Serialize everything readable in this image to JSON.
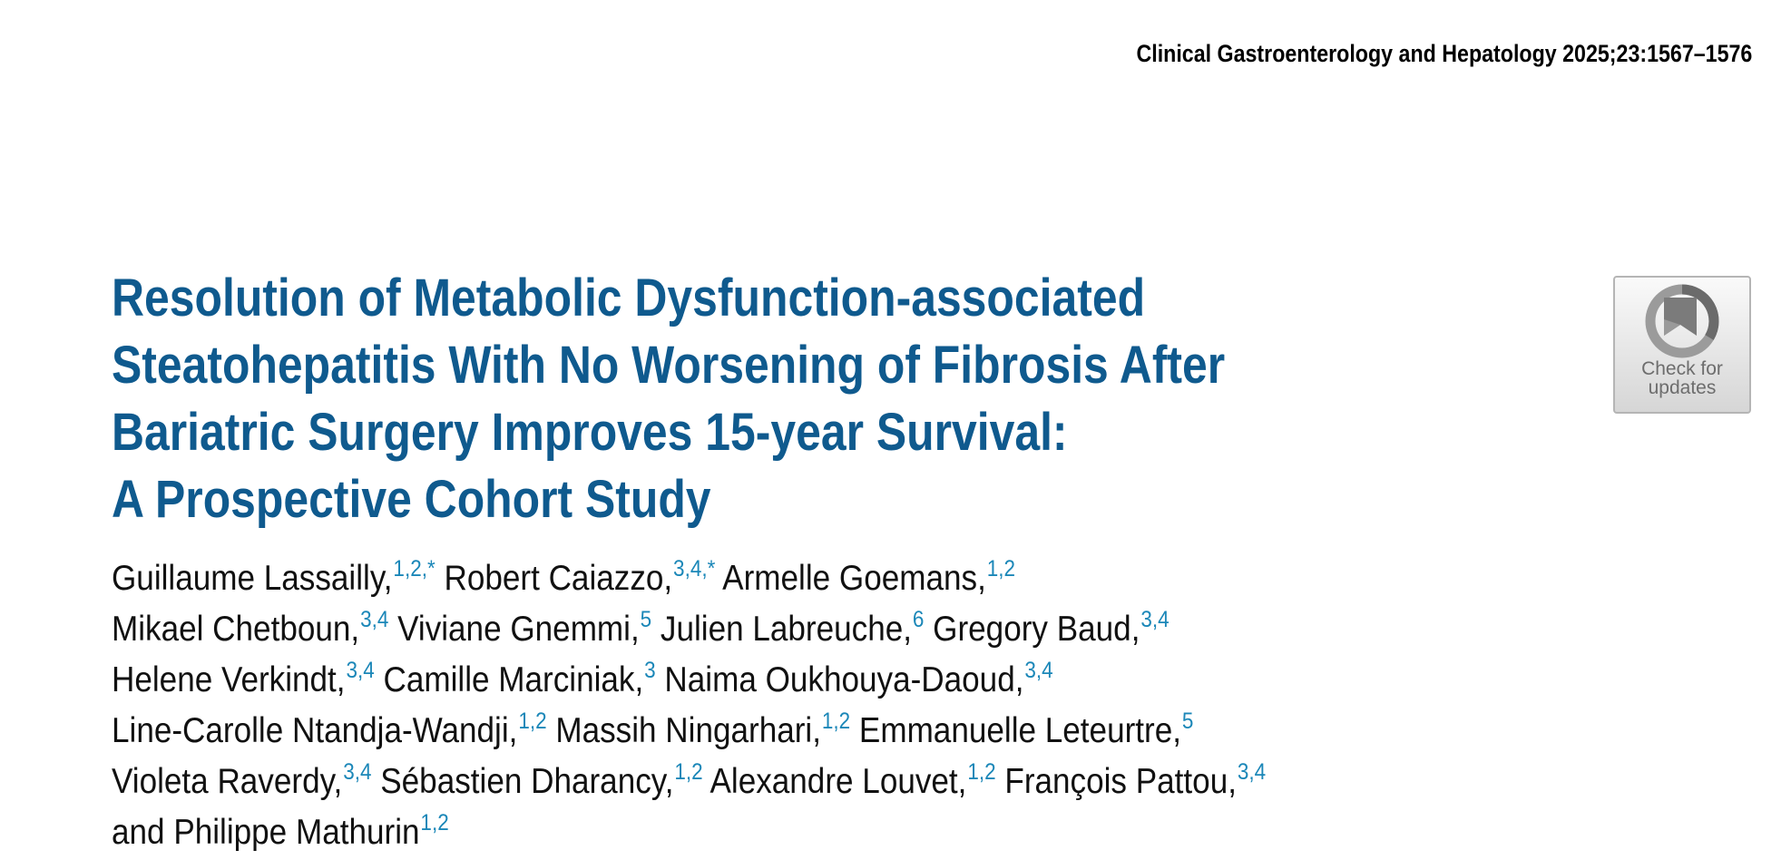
{
  "header": {
    "journal_citation": "Clinical Gastroenterology and Hepatology 2025;23:1567–1576"
  },
  "badge": {
    "line1": "Check for",
    "line2": "updates",
    "icon": "crossmark-bookmark-icon"
  },
  "title": {
    "lines": [
      "Resolution of Metabolic Dysfunction-associated",
      "Steatohepatitis With No Worsening of Fibrosis After",
      "Bariatric Surgery Improves 15-year Survival:",
      "A Prospective Cohort Study"
    ]
  },
  "authors": {
    "lines": [
      [
        {
          "name": "Guillaume Lassailly,",
          "sup": "1,2,*"
        },
        {
          "name": "Robert Caiazzo,",
          "sup": "3,4,*"
        },
        {
          "name": "Armelle Goemans,",
          "sup": "1,2"
        }
      ],
      [
        {
          "name": "Mikael Chetboun,",
          "sup": "3,4"
        },
        {
          "name": "Viviane Gnemmi,",
          "sup": "5"
        },
        {
          "name": "Julien Labreuche,",
          "sup": "6"
        },
        {
          "name": "Gregory Baud,",
          "sup": "3,4"
        }
      ],
      [
        {
          "name": "Helene Verkindt,",
          "sup": "3,4"
        },
        {
          "name": "Camille Marciniak,",
          "sup": "3"
        },
        {
          "name": "Naima Oukhouya-Daoud,",
          "sup": "3,4"
        }
      ],
      [
        {
          "name": "Line-Carolle Ntandja-Wandji,",
          "sup": "1,2"
        },
        {
          "name": "Massih Ningarhari,",
          "sup": "1,2"
        },
        {
          "name": "Emmanuelle Leteurtre,",
          "sup": "5"
        }
      ],
      [
        {
          "name": "Violeta Raverdy,",
          "sup": "3,4"
        },
        {
          "name": "Sébastien Dharancy,",
          "sup": "1,2"
        },
        {
          "name": "Alexandre Louvet,",
          "sup": "1,2"
        },
        {
          "name": "François Pattou,",
          "sup": "3,4"
        }
      ],
      [
        {
          "name": "and Philippe Mathurin",
          "sup": "1,2"
        }
      ]
    ]
  },
  "colors": {
    "title": "#0f5a8e",
    "affiliation_sup": "#1b87b8"
  }
}
